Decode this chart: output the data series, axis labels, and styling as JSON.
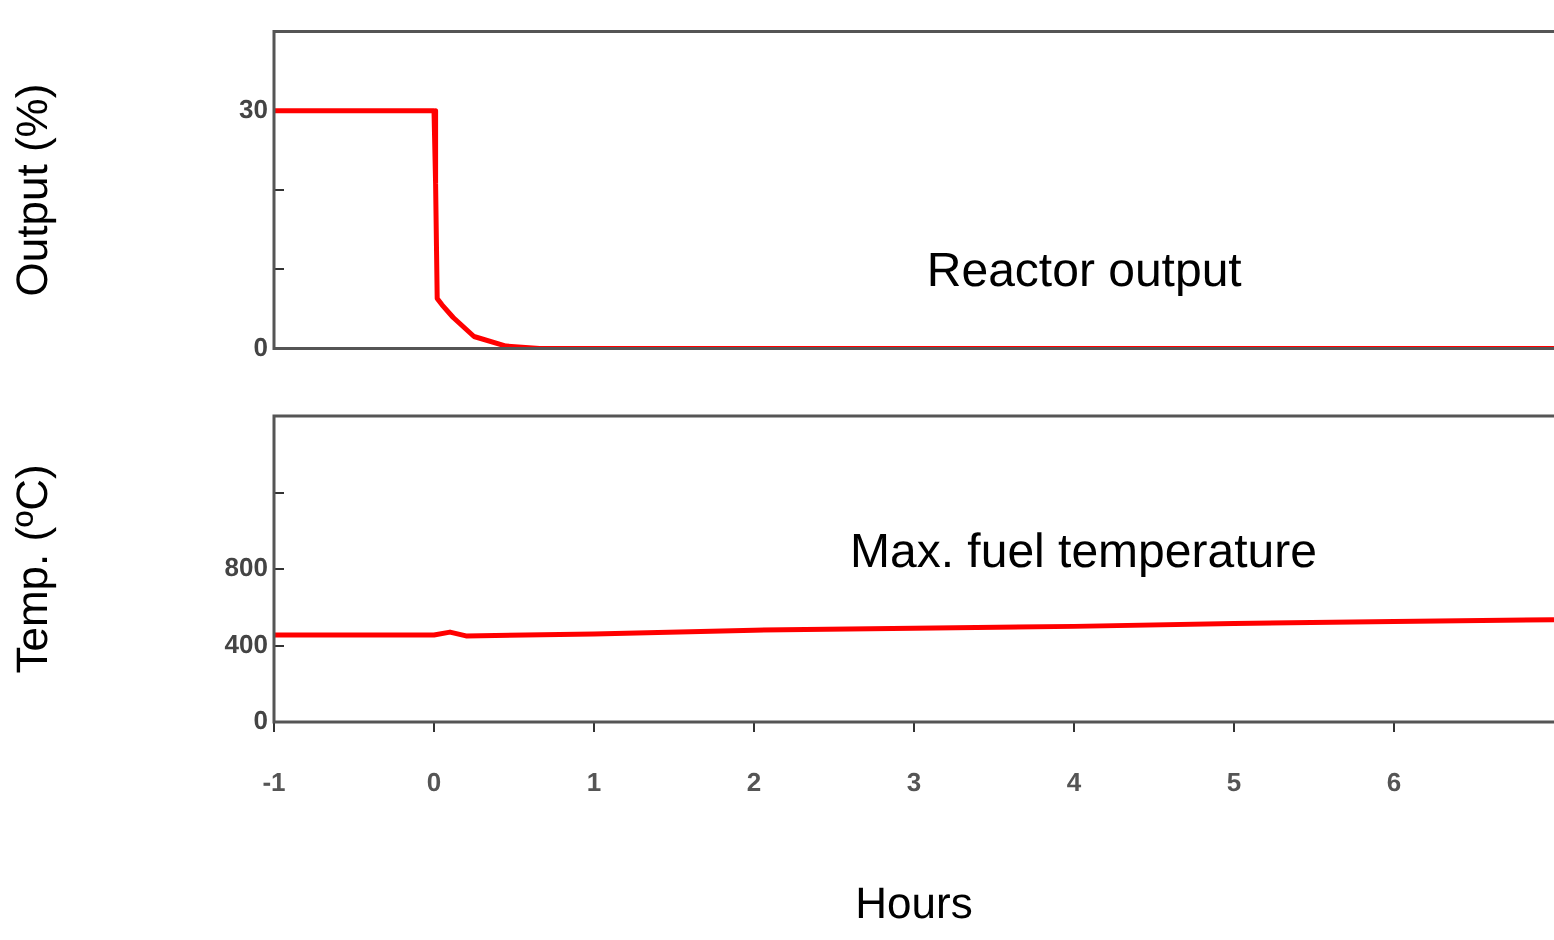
{
  "chart_data": [
    {
      "type": "line",
      "ylabel": "Output (%)",
      "xlim": [
        -1,
        7
      ],
      "ylim": [
        0,
        40
      ],
      "yticks": [
        0,
        {
          "value": 10,
          "label": null
        },
        {
          "value": 20,
          "label": null
        },
        30
      ],
      "tick_labels": "y",
      "grid": false,
      "legend": false,
      "marker": "none",
      "annotations": [
        "Reactor output"
      ],
      "series": [
        {
          "color": "#ff0000",
          "x": [
            -1,
            0,
            0.01,
            0.02,
            0.05,
            0.12,
            0.25,
            0.45,
            0.66,
            7
          ],
          "values": [
            30,
            30,
            20.8,
            6.3,
            5.5,
            3.9,
            1.5,
            0.3,
            0,
            0
          ]
        }
      ]
    },
    {
      "type": "line",
      "ylabel": "Temp. (ºC)",
      "xlabel": "Hours",
      "xlim": [
        -1,
        7
      ],
      "xticks": [
        -1,
        0,
        1,
        2,
        3,
        4,
        5,
        6
      ],
      "ylim": [
        0,
        1600
      ],
      "yticks": [
        0,
        400,
        800,
        {
          "value": 1200,
          "label": null
        }
      ],
      "grid": false,
      "legend": false,
      "marker": "none",
      "annotations": [
        "Max. fuel temperature"
      ],
      "series": [
        {
          "color": "#ff0000",
          "x": [
            -1,
            0,
            0.1,
            0.2,
            1,
            2,
            3,
            4,
            5,
            6,
            7
          ],
          "values": [
            455,
            455,
            470,
            450,
            460,
            480,
            490,
            500,
            515,
            525,
            535
          ]
        }
      ]
    }
  ]
}
